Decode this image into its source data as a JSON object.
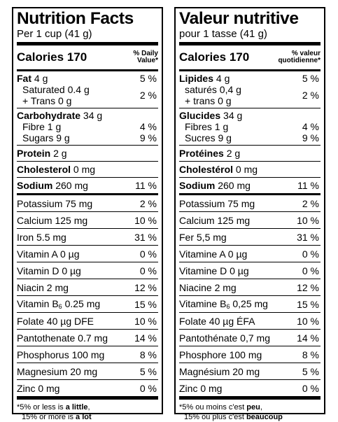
{
  "en": {
    "title": "Nutrition Facts",
    "serving": "Per 1 cup (41 g)",
    "calories_label": "Calories",
    "calories_value": "170",
    "dv_header_1": "% Daily",
    "dv_header_2": "Value*",
    "fat": {
      "label": "Fat",
      "amount": "4 g",
      "dv": "5 %"
    },
    "saturated": {
      "label": "Saturated 0.4 g",
      "dv": "2 %"
    },
    "trans": {
      "label": "+ Trans 0 g"
    },
    "carb": {
      "label": "Carbohydrate",
      "amount": "34 g"
    },
    "fibre": {
      "label": "Fibre 1 g",
      "dv": "4 %"
    },
    "sugars": {
      "label": "Sugars 9 g",
      "dv": "9 %"
    },
    "protein": {
      "label": "Protein",
      "amount": "2 g"
    },
    "cholesterol": {
      "label": "Cholesterol",
      "amount": "0 mg"
    },
    "sodium": {
      "label": "Sodium",
      "amount": "260 mg",
      "dv": "11 %"
    },
    "micros": [
      {
        "label": "Potassium 75 mg",
        "dv": "2 %"
      },
      {
        "label": "Calcium 125 mg",
        "dv": "10 %"
      },
      {
        "label": "Iron 5.5 mg",
        "dv": "31 %"
      },
      {
        "label": "Vitamin A 0 µg",
        "dv": "0 %"
      },
      {
        "label": "Vitamin D 0 µg",
        "dv": "0 %"
      },
      {
        "label": "Niacin 2 mg",
        "dv": "12 %"
      },
      {
        "label_pre": "Vitamin B",
        "label_sub": "6",
        "label_post": " 0.25 mg",
        "dv": "15 %"
      },
      {
        "label": "Folate 40 µg DFE",
        "dv": "10 %"
      },
      {
        "label": "Pantothenate 0.7 mg",
        "dv": "14 %"
      },
      {
        "label": "Phosphorus 100 mg",
        "dv": "8 %"
      },
      {
        "label": "Magnesium 20 mg",
        "dv": "5 %"
      },
      {
        "label": "Zinc 0 mg",
        "dv": "0 %"
      }
    ],
    "foot_1a": "*5% or less is ",
    "foot_1b": "a little",
    "foot_1c": ",",
    "foot_2a": "15% or more is ",
    "foot_2b": "a lot"
  },
  "fr": {
    "title": "Valeur nutritive",
    "serving": "pour 1 tasse (41 g)",
    "calories_label": "Calories",
    "calories_value": "170",
    "dv_header_1": "% valeur",
    "dv_header_2": "quotidienne*",
    "fat": {
      "label": "Lipides",
      "amount": "4 g",
      "dv": "5 %"
    },
    "saturated": {
      "label": "saturés 0,4 g",
      "dv": "2 %"
    },
    "trans": {
      "label": "+ trans 0 g"
    },
    "carb": {
      "label": "Glucides",
      "amount": "34 g"
    },
    "fibre": {
      "label": "Fibres 1 g",
      "dv": "4 %"
    },
    "sugars": {
      "label": "Sucres 9 g",
      "dv": "9 %"
    },
    "protein": {
      "label": "Protéines",
      "amount": "2 g"
    },
    "cholesterol": {
      "label": "Cholestérol",
      "amount": "0 mg"
    },
    "sodium": {
      "label": "Sodium",
      "amount": "260 mg",
      "dv": "11 %"
    },
    "micros": [
      {
        "label": "Potassium 75 mg",
        "dv": "2 %"
      },
      {
        "label": "Calcium 125 mg",
        "dv": "10 %"
      },
      {
        "label": "Fer 5,5 mg",
        "dv": "31 %"
      },
      {
        "label": "Vitamine A 0 µg",
        "dv": "0 %"
      },
      {
        "label": "Vitamine D 0 µg",
        "dv": "0 %"
      },
      {
        "label": "Niacine 2 mg",
        "dv": "12 %"
      },
      {
        "label_pre": "Vitamine B",
        "label_sub": "6",
        "label_post": " 0,25 mg",
        "dv": "15 %"
      },
      {
        "label": "Folate 40 µg ÉFA",
        "dv": "10 %"
      },
      {
        "label": "Pantothénate 0,7 mg",
        "dv": "14 %"
      },
      {
        "label": "Phosphore 100 mg",
        "dv": "8 %"
      },
      {
        "label": "Magnésium 20 mg",
        "dv": "5 %"
      },
      {
        "label": "Zinc 0 mg",
        "dv": "0 %"
      }
    ],
    "foot_1a": "*5% ou moins c'est ",
    "foot_1b": "peu",
    "foot_1c": ",",
    "foot_2a": "15% ou plus c'est ",
    "foot_2b": "beaucoup"
  }
}
